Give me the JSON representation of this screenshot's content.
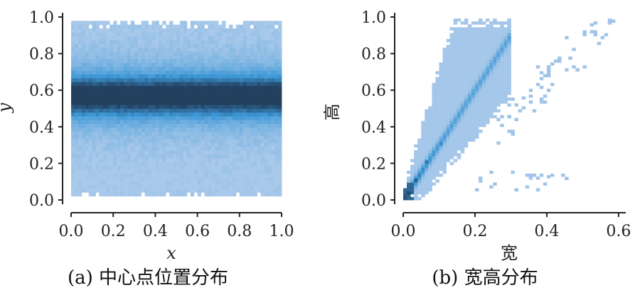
{
  "chart_data": [
    {
      "type": "heatmap",
      "caption": "(a) 中心点位置分布",
      "xlabel": "x",
      "ylabel": "y",
      "xlim": [
        0.0,
        1.0
      ],
      "ylim": [
        0.0,
        1.0
      ],
      "xticks": [
        "0.0",
        "0.2",
        "0.4",
        "0.6",
        "0.8",
        "1.0"
      ],
      "yticks": [
        "0.0",
        "0.2",
        "0.4",
        "0.6",
        "0.8",
        "1.0"
      ],
      "grid": false,
      "density_description": "uniform along x from 0.0 to 1.0; y density concentrated in a horizontal band near y = 0.57, support from about 0.02 to 0.97",
      "y_peak": 0.57,
      "y_range": [
        0.02,
        0.97
      ]
    },
    {
      "type": "heatmap",
      "caption": "(b) 宽高分布",
      "xlabel": "宽",
      "ylabel": "高",
      "xlim": [
        0.0,
        0.62
      ],
      "ylim": [
        0.0,
        1.0
      ],
      "xticks": [
        "0.0",
        "0.2",
        "0.4",
        "0.6"
      ],
      "yticks": [
        "0.0",
        "0.2",
        "0.4",
        "0.6",
        "0.8",
        "1.0"
      ],
      "grid": false,
      "density_description": "strong positive correlation; densest along line from (0.01, 0.03) to about (0.1, 0.3); broad light region up to width 0.25 and height 1.0; sparse outliers toward (0.58, 0.97)",
      "peak_points": [
        [
          0.01,
          0.03
        ],
        [
          0.03,
          0.1
        ],
        [
          0.06,
          0.2
        ],
        [
          0.1,
          0.3
        ]
      ],
      "outlier_points": [
        [
          0.37,
          0.72
        ],
        [
          0.45,
          0.88
        ],
        [
          0.52,
          0.95
        ],
        [
          0.58,
          0.97
        ],
        [
          0.33,
          0.55
        ],
        [
          0.4,
          0.12
        ],
        [
          0.45,
          0.11
        ]
      ]
    }
  ],
  "colors": {
    "light": "#a9c9ea",
    "mid": "#3c97d6",
    "dark": "#23405f",
    "axis": "#222222"
  }
}
